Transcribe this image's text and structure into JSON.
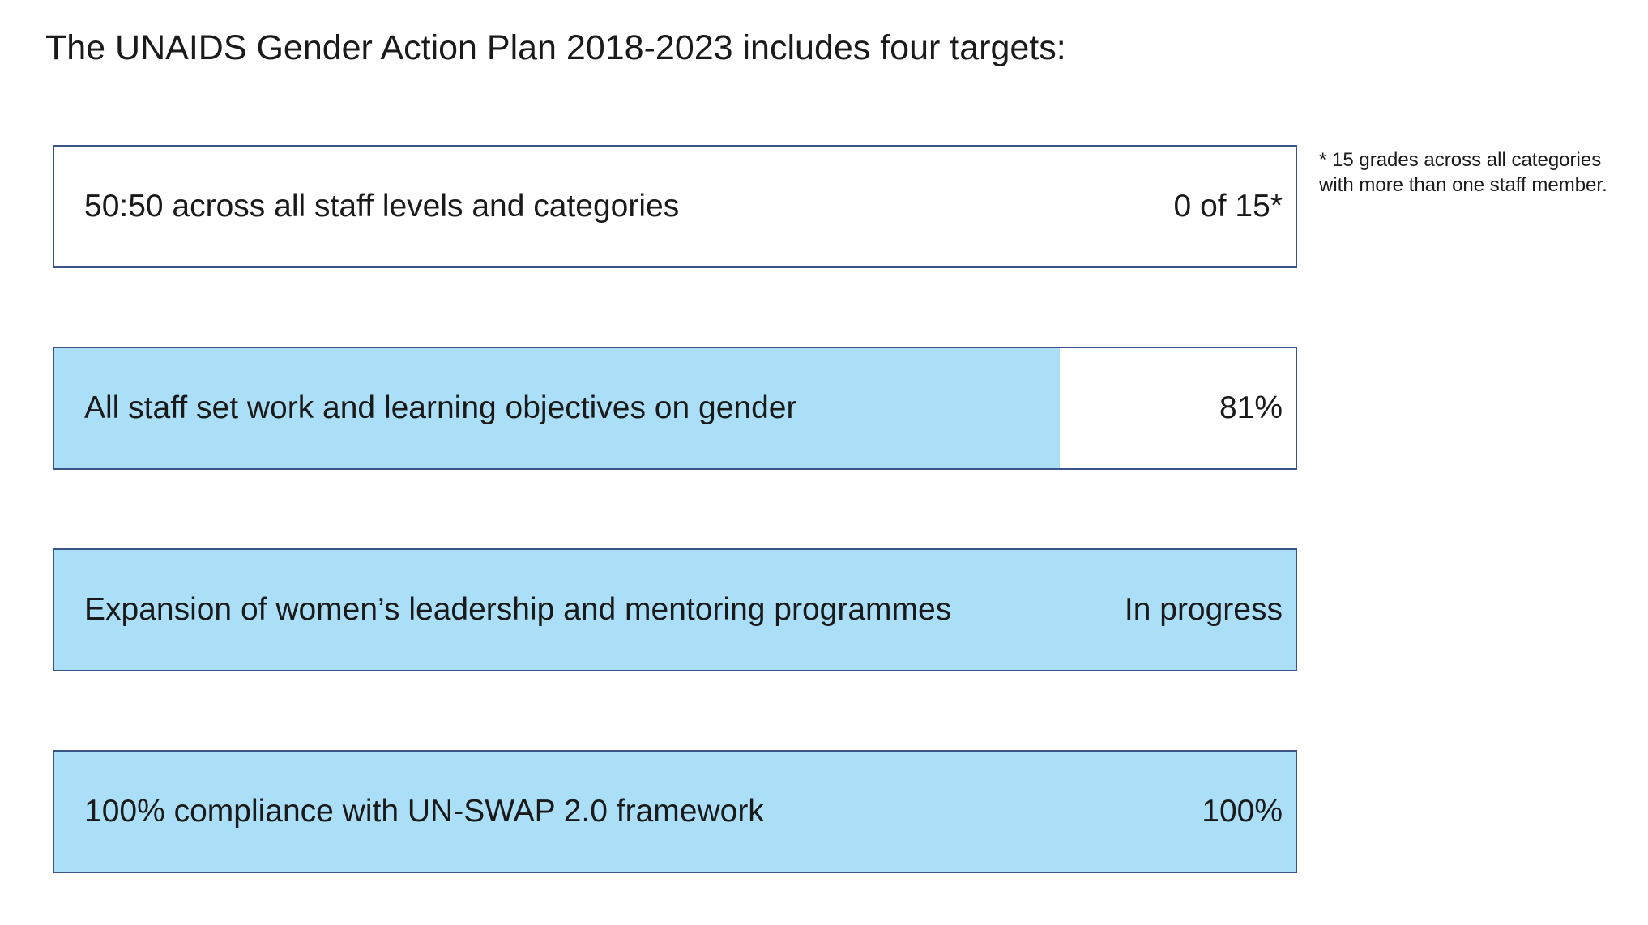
{
  "title": "The UNAIDS Gender Action Plan 2018-2023 includes four targets:",
  "footnote": "* 15 grades across all categories\nwith more than one staff member.",
  "colors": {
    "fill": "#abdff7",
    "border": "#3a5585",
    "background": "#ffffff"
  },
  "chart_data": {
    "type": "bar",
    "orientation": "horizontal",
    "categories": [
      "50:50 across all staff levels and categories",
      "All staff set work and learning objectives on gender",
      "Expansion of women’s leadership and mentoring programmes",
      "100% compliance with UN-SWAP 2.0 framework"
    ],
    "status_labels": [
      "0 of 15*",
      "81%",
      "In progress",
      "100%"
    ],
    "values": [
      0,
      81,
      100,
      100
    ],
    "xlim": [
      0,
      100
    ]
  }
}
